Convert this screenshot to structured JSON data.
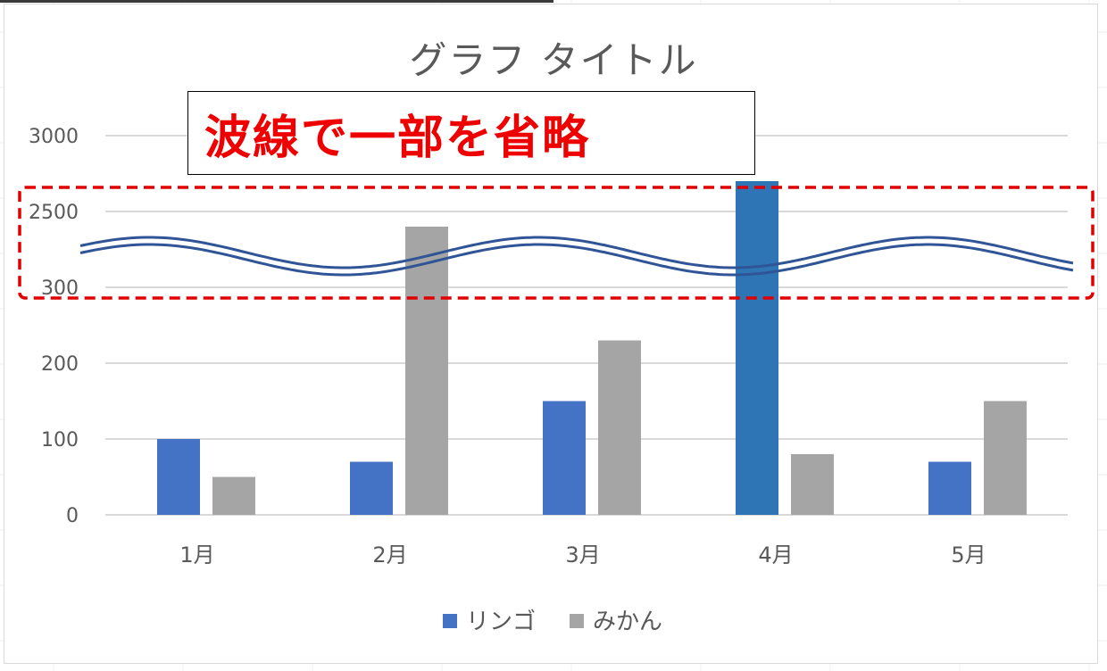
{
  "colors": {
    "apple": "#4472c4",
    "apple_highlight": "#2e75b6",
    "orange": "#a5a5a5",
    "gridline": "#d9d9d9",
    "wave": "#2f5597",
    "annotation_text": "#ee0000",
    "dashed_box": "#e00000"
  },
  "annotation": {
    "text": "波線で一部を省略"
  },
  "chart_data": {
    "type": "bar",
    "title": "グラフ タイトル",
    "categories": [
      "1月",
      "2月",
      "3月",
      "4月",
      "5月"
    ],
    "y_ticks": [
      "0",
      "100",
      "200",
      "300",
      "2500",
      "3000"
    ],
    "y_axis_break": {
      "between": [
        300,
        2500
      ],
      "style": "wavy double line"
    },
    "series": [
      {
        "name": "リンゴ",
        "values": [
          100,
          70,
          150,
          2700,
          70
        ]
      },
      {
        "name": "みかん",
        "values": [
          50,
          2400,
          230,
          80,
          150
        ]
      }
    ],
    "legend_position": "bottom",
    "grid": true
  }
}
